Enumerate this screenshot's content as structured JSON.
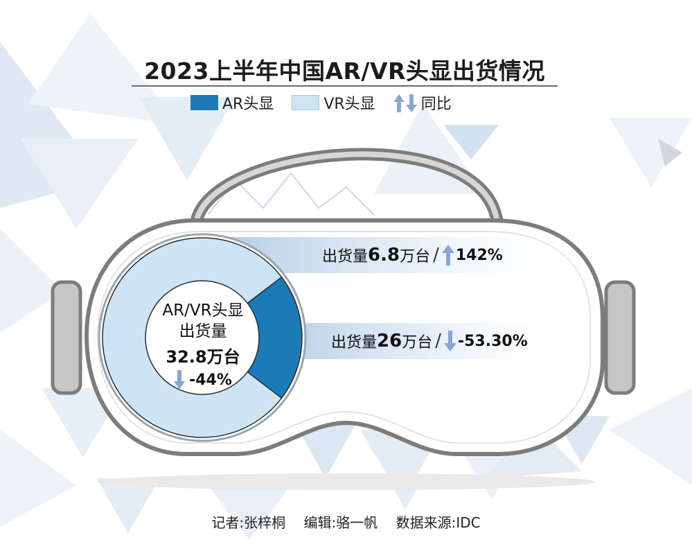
{
  "title": "2023上半年中国AR/VR头显出货情况",
  "legend": {
    "ar_label": "AR头显",
    "vr_label": "VR头显",
    "yoy_label": "同比"
  },
  "colors": {
    "ar": "#1a7bb6",
    "vr": "#cde4f4",
    "arrow": "#8aa6d2",
    "frame": "#7c7c7c",
    "ear": "#c6c6c6"
  },
  "center": {
    "line1": "AR/VR头显",
    "line2": "出货量",
    "total": "32.8万台",
    "yoy": "-44%"
  },
  "callouts": {
    "ar": {
      "prefix": "出货量",
      "value": "6.8",
      "unit": "万台",
      "slash": "/",
      "yoy": "142%"
    },
    "vr": {
      "prefix": "出货量",
      "value": "26",
      "unit": "万台",
      "slash": "/",
      "yoy": "-53.30%"
    }
  },
  "footer": {
    "reporter": "记者:张梓桐",
    "editor": "编辑:骆一帆",
    "source": "数据来源:IDC"
  },
  "chart_data": {
    "type": "pie",
    "title": "2023上半年中国AR/VR头显出货情况",
    "unit": "万台",
    "total": 32.8,
    "total_yoy_percent": -44,
    "slices": [
      {
        "name": "AR头显",
        "value": 6.8,
        "yoy_percent": 142
      },
      {
        "name": "VR头显",
        "value": 26,
        "yoy_percent": -53.3
      }
    ]
  }
}
